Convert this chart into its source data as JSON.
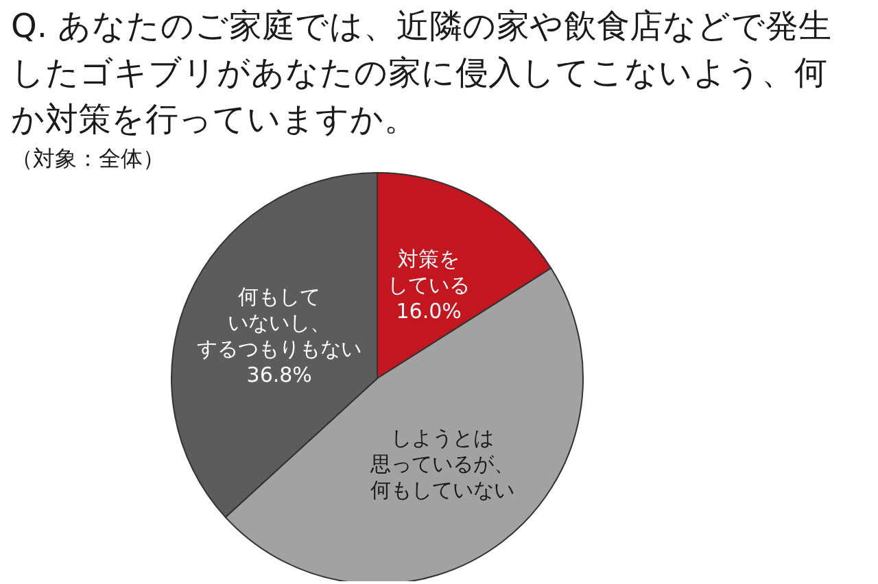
{
  "chart_data": {
    "type": "pie",
    "title": "Q. あなたのご家庭では、近隣の家や飲食店などで発生したゴキブリがあなたの家に侵入してこないよう、何か対策を行っていますか。",
    "subtitle": "（対象：全体）",
    "categories": [
      "対策をしている",
      "しようとは思っているが、何もしていない",
      "何もしていないし、するつもりもない"
    ],
    "values": [
      16.0,
      47.2,
      36.8
    ],
    "colors": [
      "#c3161f",
      "#a2a2a2",
      "#5c5c5c"
    ],
    "value_labels": [
      "16.0%",
      null,
      "36.8%"
    ]
  }
}
